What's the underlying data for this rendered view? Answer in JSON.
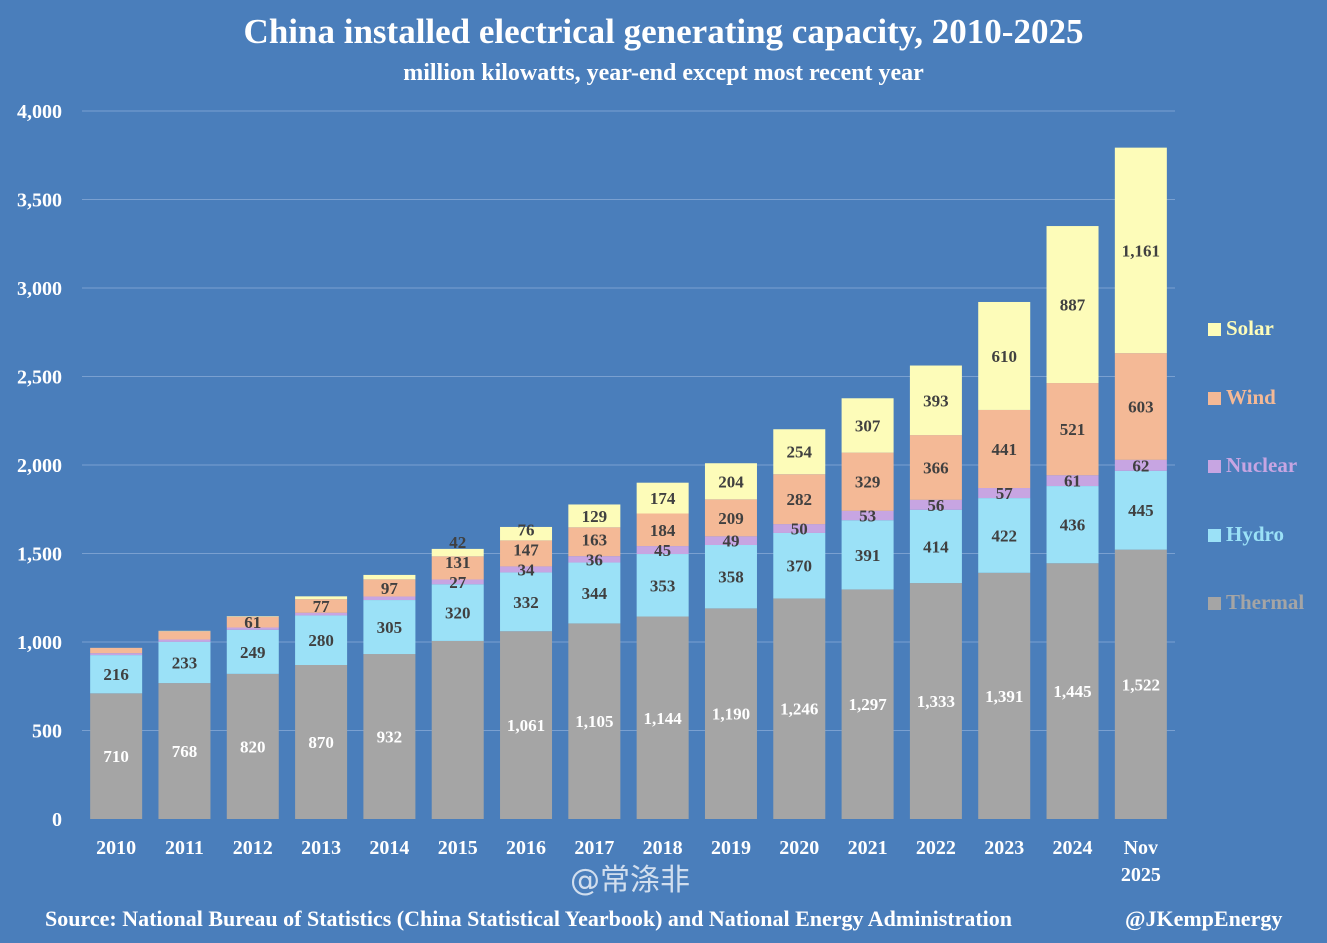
{
  "chart_data": {
    "type": "bar",
    "stacked": true,
    "title": "China installed electrical generating capacity, 2010-2025",
    "subtitle": "million kilowatts, year-end except most recent year",
    "categories": [
      "2010",
      "2011",
      "2012",
      "2013",
      "2014",
      "2015",
      "2016",
      "2017",
      "2018",
      "2019",
      "2020",
      "2021",
      "2022",
      "2023",
      "2024",
      "Nov 2025"
    ],
    "ylim": [
      0,
      4000
    ],
    "yticks": [
      0,
      500,
      1000,
      1500,
      2000,
      2500,
      3000,
      3500,
      4000
    ],
    "ytick_labels": [
      "0",
      "500",
      "1,000",
      "1,500",
      "2,000",
      "2,500",
      "3,000",
      "3,500",
      "4,000"
    ],
    "grid": true,
    "legend_placement": "right",
    "series": [
      {
        "name": "Thermal",
        "color": "#a5a5a5",
        "label_color": "#ffffff",
        "values": [
          710,
          768,
          820,
          870,
          932,
          1006,
          1061,
          1105,
          1144,
          1190,
          1246,
          1297,
          1333,
          1391,
          1445,
          1522
        ],
        "labels": [
          "710",
          "768",
          "820",
          "870",
          "932",
          "",
          "1,061",
          "1,105",
          "1,144",
          "1,190",
          "1,246",
          "1,297",
          "1,333",
          "1,391",
          "1,445",
          "1,522"
        ]
      },
      {
        "name": "Hydro",
        "color": "#9be1f7",
        "label_color": "#404040",
        "values": [
          216,
          233,
          249,
          280,
          305,
          320,
          332,
          344,
          353,
          358,
          370,
          391,
          414,
          422,
          436,
          445
        ],
        "labels": [
          "216",
          "233",
          "249",
          "280",
          "305",
          "320",
          "332",
          "344",
          "353",
          "358",
          "370",
          "391",
          "414",
          "422",
          "436",
          "445"
        ]
      },
      {
        "name": "Nuclear",
        "color": "#c7a5e2",
        "label_color": "#404040",
        "values": [
          11,
          13,
          13,
          15,
          20,
          27,
          34,
          36,
          45,
          49,
          50,
          53,
          56,
          57,
          61,
          62
        ],
        "labels": [
          "",
          "",
          "",
          "",
          "",
          "27",
          "34",
          "36",
          "45",
          "49",
          "50",
          "53",
          "56",
          "57",
          "61",
          "62"
        ]
      },
      {
        "name": "Wind",
        "color": "#f4b996",
        "label_color": "#404040",
        "values": [
          30,
          47,
          61,
          77,
          97,
          131,
          147,
          163,
          184,
          209,
          282,
          329,
          366,
          441,
          521,
          603
        ],
        "labels": [
          "",
          "",
          "61",
          "77",
          "97",
          "131",
          "147",
          "163",
          "184",
          "209",
          "282",
          "329",
          "366",
          "441",
          "521",
          "603"
        ]
      },
      {
        "name": "Solar",
        "color": "#fdfcb9",
        "label_color": "#404040",
        "values": [
          0,
          2,
          3,
          16,
          25,
          42,
          76,
          129,
          174,
          204,
          254,
          307,
          393,
          610,
          887,
          1161
        ],
        "labels": [
          "",
          "",
          "",
          "",
          "",
          "42",
          "76",
          "129",
          "174",
          "204",
          "254",
          "307",
          "393",
          "610",
          "887",
          "1,161"
        ]
      }
    ]
  },
  "legend_order": [
    "Solar",
    "Wind",
    "Nuclear",
    "Hydro",
    "Thermal"
  ],
  "legend_colors": {
    "Solar": "#fdfcb9",
    "Wind": "#f4b996",
    "Nuclear": "#c7a5e2",
    "Hydro": "#9be1f7",
    "Thermal": "#a5a5a5"
  },
  "footer": {
    "source": "Source: National Bureau of Statistics (China Statistical Yearbook) and National Energy Administration",
    "credit": "@JKempEnergy"
  },
  "watermark": "@常涤非",
  "colors": {
    "background": "#4a7ebb",
    "gridline": "#7aa0d0"
  }
}
